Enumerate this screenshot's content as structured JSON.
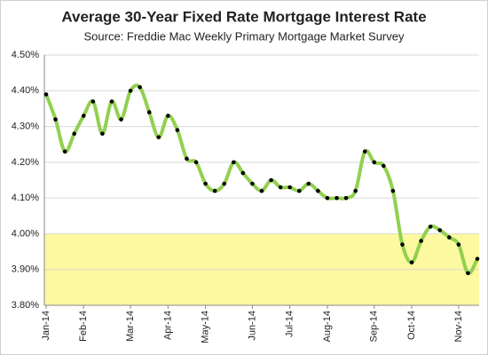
{
  "chart_data": {
    "type": "line",
    "title": "Average 30-Year Fixed Rate Mortgage Interest Rate",
    "subtitle": "Source: Freddie Mac Weekly Primary Mortgage Market Survey",
    "categories": [
      "Jan-14",
      null,
      null,
      null,
      "Feb-14",
      null,
      null,
      null,
      null,
      "Mar-14",
      null,
      null,
      null,
      "Apr-14",
      null,
      null,
      null,
      "May-14",
      null,
      null,
      null,
      null,
      "Jun-14",
      null,
      null,
      null,
      "Jul-14",
      null,
      null,
      null,
      "Aug-14",
      null,
      null,
      null,
      null,
      "Sep-14",
      null,
      null,
      null,
      "Oct-14",
      null,
      null,
      null,
      null,
      "Nov-14",
      null,
      null
    ],
    "values": [
      4.39,
      4.32,
      4.23,
      4.28,
      4.33,
      4.37,
      4.28,
      4.37,
      4.32,
      4.4,
      4.41,
      4.34,
      4.27,
      4.33,
      4.29,
      4.21,
      4.2,
      4.14,
      4.12,
      4.14,
      4.2,
      4.17,
      4.14,
      4.12,
      4.15,
      4.13,
      4.13,
      4.12,
      4.14,
      4.12,
      4.1,
      4.1,
      4.1,
      4.12,
      4.23,
      4.2,
      4.19,
      4.12,
      3.97,
      3.92,
      3.98,
      4.02,
      4.01,
      3.99,
      3.97,
      3.89,
      3.93
    ],
    "color": "#92d050",
    "marker_color": "#000000",
    "highlight_band": [
      3.8,
      4.0
    ],
    "highlight_color": "#fdf9a0",
    "ylim": [
      3.8,
      4.5
    ],
    "yticks": [
      {
        "value": 3.8,
        "label": "3.80%"
      },
      {
        "value": 3.9,
        "label": "3.90%"
      },
      {
        "value": 4.0,
        "label": "4.00%"
      },
      {
        "value": 4.1,
        "label": "4.10%"
      },
      {
        "value": 4.2,
        "label": "4.20%"
      },
      {
        "value": 4.3,
        "label": "4.30%"
      },
      {
        "value": 4.4,
        "label": "4.40%"
      },
      {
        "value": 4.5,
        "label": "4.50%"
      }
    ],
    "grid": true
  }
}
